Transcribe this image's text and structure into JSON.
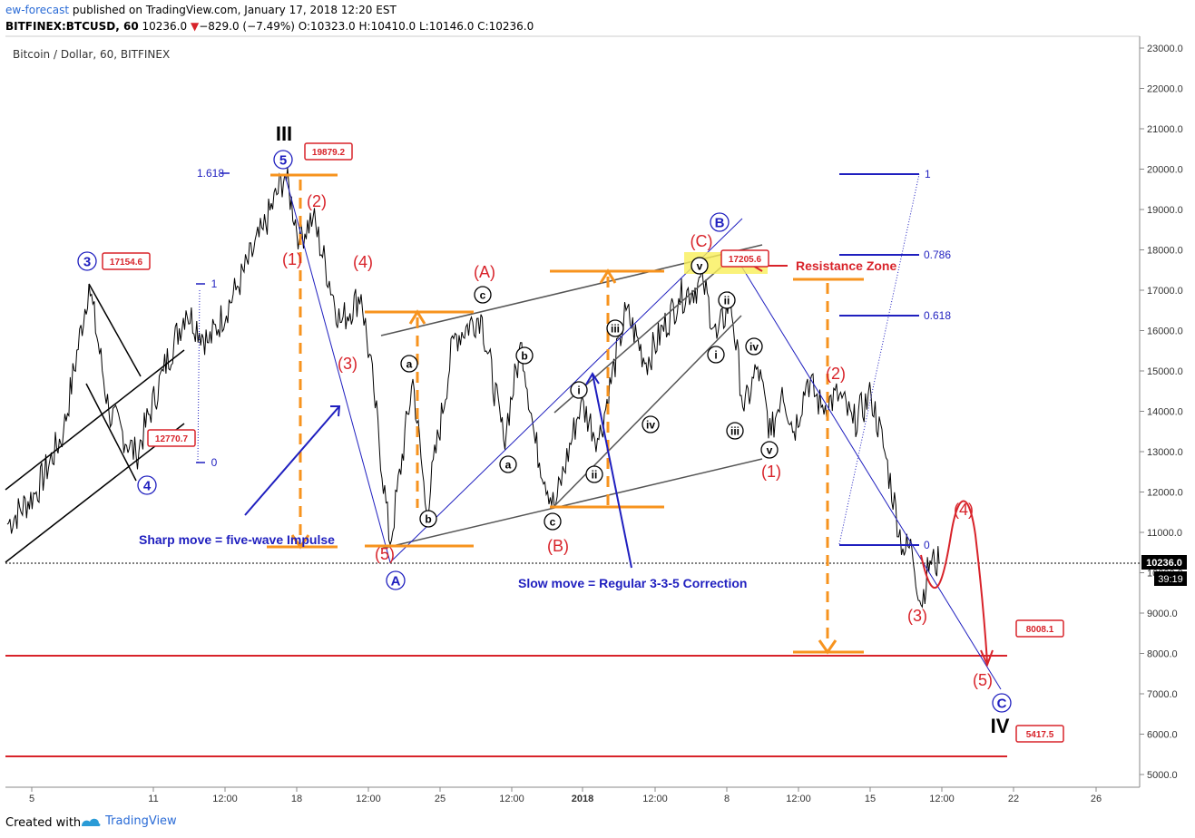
{
  "header": {
    "user": "ew-forecast",
    "published": " published on TradingView.com, January 17, 2018 12:20 EST",
    "symbol": "BITFINEX:BTCUSD, 60",
    "last": "10236.0",
    "change": "−829.0 (−7.49%)",
    "ohlc": "O:10323.0 H:10410.0 L:10146.0 C:10236.0"
  },
  "chart_title": "Bitcoin / Dollar, 60, BITFINEX",
  "footer": {
    "created": "Created with",
    "brand": "TradingView"
  },
  "current_price_label": "10236.0",
  "countdown": "39:19",
  "price_boxes": [
    "19879.2",
    "17154.6",
    "12770.7",
    "17205.6",
    "8008.1",
    "5417.5"
  ],
  "notes": {
    "impulse": "Sharp move = five-wave Impulse",
    "correction": "Slow move = Regular 3-3-5 Correction",
    "resistance": "Resistance Zone"
  },
  "fib_left": [
    "1.618",
    "1",
    "0"
  ],
  "fib_right": [
    "1",
    "0.786",
    "0.618",
    "0"
  ],
  "wave_labels": {
    "III": "III",
    "IV": "IV",
    "blue": [
      "3",
      "4",
      "5",
      "A",
      "B",
      "C"
    ],
    "red": [
      "(1)",
      "(2)",
      "(3)",
      "(4)",
      "(5)",
      "(A)",
      "(B)",
      "(C)",
      "(1)",
      "(2)",
      "(3)",
      "(4)",
      "(5)"
    ],
    "black": [
      "a",
      "b",
      "c",
      "a",
      "b",
      "c",
      "i",
      "ii",
      "iii",
      "iv",
      "v",
      "i",
      "ii",
      "iii",
      "iv",
      "v"
    ]
  },
  "colors": {
    "blue": "#1f1fbf",
    "red": "#d8232a",
    "orange": "#f7931e",
    "black": "#000000",
    "grey": "#666666"
  },
  "chart_data": {
    "type": "line",
    "title": "Bitcoin / Dollar, 60, BITFINEX",
    "xlabel": "",
    "ylabel": "",
    "ylim": [
      4800,
      23300
    ],
    "y_ticks": [
      "5000.0",
      "6000.0",
      "7000.0",
      "8000.0",
      "9000.0",
      "10000.0",
      "11000.0",
      "12000.0",
      "13000.0",
      "14000.0",
      "15000.0",
      "16000.0",
      "17000.0",
      "18000.0",
      "19000.0",
      "20000.0",
      "21000.0",
      "22000.0",
      "23000.0"
    ],
    "x_ticks": [
      "5",
      "11",
      "12:00",
      "18",
      "12:00",
      "25",
      "12:00",
      "2018",
      "12:00",
      "8",
      "12:00",
      "15",
      "12:00",
      "22",
      "26"
    ],
    "series": [
      {
        "name": "BTCUSD",
        "x_index": [
          0,
          1,
          2,
          3,
          4,
          5,
          6,
          7,
          8,
          9,
          10,
          11,
          12,
          13,
          14,
          15,
          16,
          17,
          18,
          19,
          20,
          21,
          22,
          23,
          24,
          25,
          26,
          27,
          28,
          29,
          30,
          31,
          32,
          33,
          34,
          35,
          36,
          37,
          38,
          39,
          40,
          41,
          42,
          43,
          44,
          45,
          46,
          47,
          48,
          49,
          50
        ],
        "values": [
          11200,
          12000,
          13500,
          17154,
          14000,
          12900,
          15000,
          16500,
          15700,
          17000,
          18500,
          19879,
          18300,
          18800,
          16200,
          16900,
          14500,
          10700,
          14800,
          11500,
          15800,
          16400,
          13300,
          15700,
          13200,
          11600,
          14200,
          13300,
          16500,
          15200,
          16800,
          17206,
          15800,
          16800,
          14000,
          15100,
          13400,
          14600,
          13500,
          14800,
          14100,
          14400,
          13700,
          14400,
          13000,
          10600,
          10600,
          9200,
          10300,
          10236,
          10236
        ]
      }
    ],
    "annotations": [
      "19879.2",
      "17154.6",
      "12770.7",
      "17205.6",
      "8008.1",
      "5417.5"
    ],
    "grid": false,
    "legend": "none"
  }
}
